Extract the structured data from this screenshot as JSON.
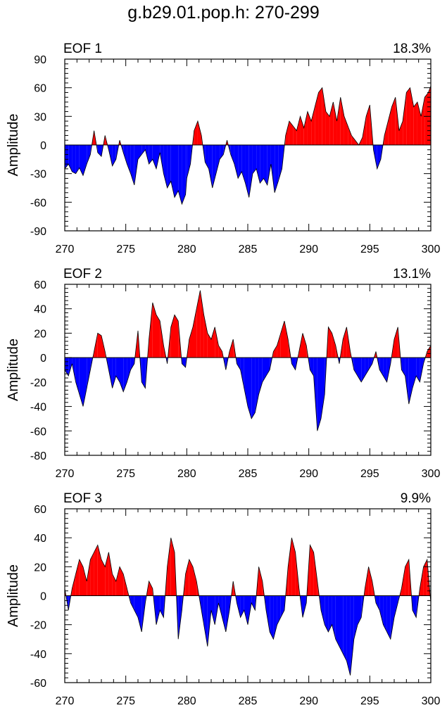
{
  "title": "g.b29.01.pop.h: 270-299",
  "colors": {
    "positive": "#ff0000",
    "negative": "#0000ff",
    "line": "#000000",
    "frame": "#000000"
  },
  "chart_data": [
    {
      "type": "area",
      "panel_label": "EOF 1",
      "variance": "18.3%",
      "ylabel": "Amplitude",
      "xlabel": "",
      "xlim": [
        270,
        300
      ],
      "ylim": [
        -90,
        90
      ],
      "xticks": [
        270,
        275,
        280,
        285,
        290,
        295,
        300
      ],
      "yticks": [
        -90,
        -60,
        -30,
        0,
        30,
        60,
        90
      ],
      "xticklabels": [
        "270",
        "275",
        "280",
        "285",
        "290",
        "295",
        "300"
      ],
      "yticklabels": [
        "-90",
        "-60",
        "-30",
        "0",
        "30",
        "60",
        "90"
      ],
      "series": [
        {
          "name": "EOF 1 amplitude",
          "x": [
            270,
            270.3,
            270.6,
            270.9,
            271.2,
            271.5,
            271.8,
            272.1,
            272.4,
            272.7,
            273.0,
            273.3,
            273.6,
            273.9,
            274.2,
            274.5,
            274.8,
            275.1,
            275.4,
            275.7,
            276.0,
            276.3,
            276.6,
            276.9,
            277.2,
            277.5,
            277.8,
            278.1,
            278.4,
            278.7,
            279.0,
            279.3,
            279.6,
            279.9,
            280.0,
            280.3,
            280.6,
            280.9,
            281.2,
            281.5,
            281.8,
            282.1,
            282.4,
            282.7,
            283.0,
            283.3,
            283.6,
            283.9,
            284.2,
            284.5,
            284.8,
            285.1,
            285.4,
            285.7,
            286.0,
            286.3,
            286.6,
            286.9,
            287.2,
            287.5,
            287.8,
            288.1,
            288.4,
            288.7,
            289.0,
            289.3,
            289.6,
            289.9,
            290.2,
            290.5,
            290.8,
            291.1,
            291.4,
            291.7,
            292.0,
            292.3,
            292.6,
            292.9,
            293.2,
            293.5,
            293.8,
            294.1,
            294.4,
            294.7,
            295.0,
            295.3,
            295.6,
            295.9,
            296.2,
            296.5,
            296.8,
            297.1,
            297.4,
            297.7,
            298.0,
            298.3,
            298.6,
            298.9,
            299.2,
            299.5,
            299.8,
            300
          ],
          "values": [
            -25,
            -20,
            -28,
            -30,
            -24,
            -32,
            -20,
            -10,
            15,
            -8,
            -12,
            10,
            -5,
            -22,
            -15,
            5,
            -8,
            -20,
            -30,
            -42,
            -15,
            -10,
            -5,
            -20,
            -15,
            -25,
            -8,
            -30,
            -45,
            -38,
            -55,
            -48,
            -62,
            -52,
            -35,
            -20,
            15,
            25,
            10,
            -18,
            -25,
            -45,
            -30,
            -15,
            -10,
            5,
            -10,
            -20,
            -35,
            -28,
            -40,
            -55,
            -30,
            -25,
            -40,
            -35,
            -42,
            -20,
            -50,
            -38,
            -25,
            10,
            25,
            20,
            15,
            30,
            18,
            35,
            25,
            40,
            55,
            60,
            35,
            30,
            45,
            25,
            50,
            30,
            20,
            10,
            5,
            0,
            8,
            30,
            42,
            -5,
            -25,
            -15,
            10,
            25,
            40,
            50,
            15,
            25,
            55,
            60,
            40,
            45,
            30,
            50,
            55,
            62
          ]
        }
      ]
    },
    {
      "type": "area",
      "panel_label": "EOF 2",
      "variance": "13.1%",
      "ylabel": "Amplitude",
      "xlabel": "",
      "xlim": [
        270,
        300
      ],
      "ylim": [
        -80,
        60
      ],
      "xticks": [
        270,
        275,
        280,
        285,
        290,
        295,
        300
      ],
      "yticks": [
        -80,
        -60,
        -40,
        -20,
        0,
        20,
        40,
        60
      ],
      "xticklabels": [
        "270",
        "275",
        "280",
        "285",
        "290",
        "295",
        "300"
      ],
      "yticklabels": [
        "-80",
        "-60",
        "-40",
        "-20",
        "0",
        "20",
        "40",
        "60"
      ],
      "series": [
        {
          "name": "EOF 2 amplitude",
          "x": [
            270,
            270.3,
            270.6,
            270.9,
            271.2,
            271.5,
            271.8,
            272.1,
            272.4,
            272.7,
            273.0,
            273.3,
            273.6,
            273.9,
            274.2,
            274.5,
            274.8,
            275.1,
            275.4,
            275.7,
            276.0,
            276.3,
            276.6,
            276.9,
            277.2,
            277.5,
            277.8,
            278.1,
            278.4,
            278.7,
            279.0,
            279.3,
            279.6,
            279.9,
            280.2,
            280.5,
            280.8,
            281.1,
            281.4,
            281.7,
            282.0,
            282.3,
            282.6,
            282.9,
            283.2,
            283.5,
            283.8,
            284.1,
            284.4,
            284.7,
            285.0,
            285.3,
            285.6,
            285.9,
            286.2,
            286.5,
            286.8,
            287.1,
            287.4,
            287.7,
            288.0,
            288.3,
            288.6,
            288.9,
            289.2,
            289.5,
            289.8,
            290.1,
            290.4,
            290.7,
            291.0,
            291.3,
            291.6,
            291.9,
            292.2,
            292.5,
            292.8,
            293.1,
            293.4,
            293.7,
            294.0,
            294.3,
            294.6,
            294.9,
            295.2,
            295.5,
            295.8,
            296.1,
            296.4,
            296.7,
            297.0,
            297.3,
            297.6,
            297.9,
            298.2,
            298.5,
            298.8,
            299.1,
            299.4,
            299.7,
            300
          ],
          "values": [
            -10,
            -15,
            -5,
            -20,
            -30,
            -40,
            -25,
            -10,
            5,
            20,
            18,
            5,
            -10,
            -25,
            -15,
            -20,
            -28,
            -20,
            -10,
            -5,
            22,
            -20,
            -25,
            15,
            45,
            35,
            30,
            10,
            -5,
            25,
            35,
            30,
            -5,
            -8,
            15,
            25,
            40,
            55,
            35,
            20,
            15,
            25,
            10,
            5,
            -10,
            5,
            15,
            -5,
            -10,
            -25,
            -40,
            -50,
            -45,
            -30,
            -20,
            -15,
            -10,
            5,
            10,
            20,
            30,
            15,
            -5,
            -10,
            5,
            20,
            10,
            -10,
            -15,
            -60,
            -50,
            -30,
            25,
            20,
            10,
            -5,
            15,
            25,
            5,
            -10,
            -15,
            -20,
            -15,
            -10,
            -5,
            5,
            -10,
            -15,
            -20,
            -5,
            15,
            25,
            -10,
            -15,
            -38,
            -25,
            -15,
            -20,
            -5,
            5,
            10
          ]
        }
      ]
    },
    {
      "type": "area",
      "panel_label": "EOF 3",
      "variance": "9.9%",
      "ylabel": "Amplitude",
      "xlabel": "",
      "xlim": [
        270,
        300
      ],
      "ylim": [
        -60,
        60
      ],
      "xticks": [
        270,
        275,
        280,
        285,
        290,
        295,
        300
      ],
      "yticks": [
        -60,
        -40,
        -20,
        0,
        20,
        40,
        60
      ],
      "xticklabels": [
        "270",
        "275",
        "280",
        "285",
        "290",
        "295",
        "300"
      ],
      "yticklabels": [
        "-60",
        "-40",
        "-20",
        "0",
        "20",
        "40",
        "60"
      ],
      "series": [
        {
          "name": "EOF 3 amplitude",
          "x": [
            270,
            270.3,
            270.6,
            270.9,
            271.2,
            271.5,
            271.8,
            272.1,
            272.4,
            272.7,
            273.0,
            273.3,
            273.6,
            273.9,
            274.2,
            274.5,
            274.8,
            275.1,
            275.4,
            275.7,
            276.0,
            276.3,
            276.6,
            276.9,
            277.2,
            277.5,
            277.8,
            278.1,
            278.4,
            278.7,
            279.0,
            279.3,
            279.6,
            279.9,
            280.2,
            280.5,
            280.8,
            281.1,
            281.4,
            281.7,
            282.0,
            282.3,
            282.6,
            282.9,
            283.2,
            283.5,
            283.8,
            284.1,
            284.4,
            284.7,
            285.0,
            285.3,
            285.6,
            285.9,
            286.2,
            286.5,
            286.8,
            287.1,
            287.4,
            287.7,
            288.0,
            288.3,
            288.6,
            288.9,
            289.2,
            289.5,
            289.8,
            290.1,
            290.4,
            290.7,
            291.0,
            291.3,
            291.6,
            291.9,
            292.2,
            292.5,
            292.8,
            293.1,
            293.4,
            293.7,
            294.0,
            294.3,
            294.6,
            294.9,
            295.2,
            295.5,
            295.8,
            296.1,
            296.4,
            296.7,
            297.0,
            297.3,
            297.6,
            297.9,
            298.2,
            298.5,
            298.8,
            299.1,
            299.4,
            299.7,
            300
          ],
          "values": [
            5,
            -10,
            5,
            15,
            25,
            20,
            10,
            25,
            30,
            35,
            25,
            20,
            30,
            15,
            10,
            20,
            15,
            5,
            -5,
            -10,
            -15,
            -25,
            -5,
            10,
            5,
            -20,
            -10,
            -15,
            20,
            40,
            30,
            -30,
            -10,
            15,
            25,
            20,
            10,
            -5,
            -20,
            -35,
            -10,
            -20,
            -5,
            -15,
            -25,
            -10,
            10,
            -5,
            -15,
            -10,
            -20,
            -5,
            -10,
            20,
            10,
            -10,
            -25,
            -30,
            -20,
            -15,
            -10,
            20,
            40,
            30,
            5,
            -15,
            -5,
            35,
            30,
            10,
            -10,
            -20,
            -25,
            -20,
            -30,
            -35,
            -40,
            -45,
            -55,
            -30,
            -20,
            -15,
            5,
            20,
            10,
            -5,
            -10,
            -20,
            -25,
            -30,
            -15,
            -5,
            5,
            20,
            25,
            -10,
            -15,
            5,
            20,
            25,
            -5
          ]
        }
      ]
    }
  ]
}
